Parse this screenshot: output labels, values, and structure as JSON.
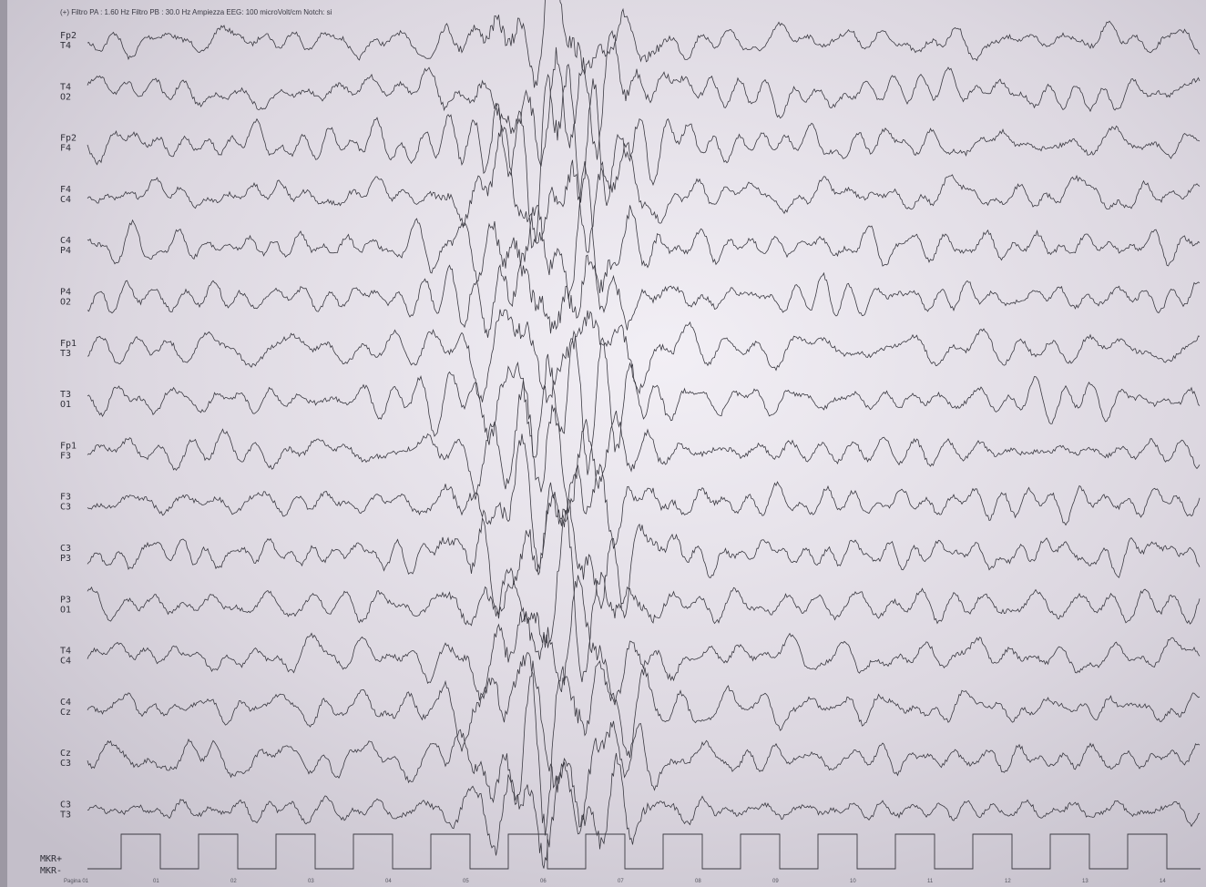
{
  "header": "(+)  Filtro PA  : 1.60 Hz  Filtro PB  : 30.0 Hz  Ampiezza EEG:  100 microVolt/cm  Notch: si",
  "channels": [
    [
      "Fp2",
      "T4"
    ],
    [
      "T4",
      "O2"
    ],
    [
      "Fp2",
      "F4"
    ],
    [
      "F4",
      "C4"
    ],
    [
      "C4",
      "P4"
    ],
    [
      "P4",
      "O2"
    ],
    [
      "Fp1",
      "T3"
    ],
    [
      "T3",
      "O1"
    ],
    [
      "Fp1",
      "F3"
    ],
    [
      "F3",
      "C3"
    ],
    [
      "C3",
      "P3"
    ],
    [
      "P3",
      "O1"
    ],
    [
      "T4",
      "C4"
    ],
    [
      "C4",
      "Cz"
    ],
    [
      "Cz",
      "C3"
    ],
    [
      "C3",
      "T3"
    ]
  ],
  "marker_labels": [
    "MKR+",
    "MKR-"
  ],
  "page_label": "Pagina 01",
  "time_marks": [
    "01",
    "02",
    "03",
    "04",
    "05",
    "06",
    "07",
    "08",
    "09",
    "10",
    "11",
    "12",
    "13",
    "14"
  ]
}
